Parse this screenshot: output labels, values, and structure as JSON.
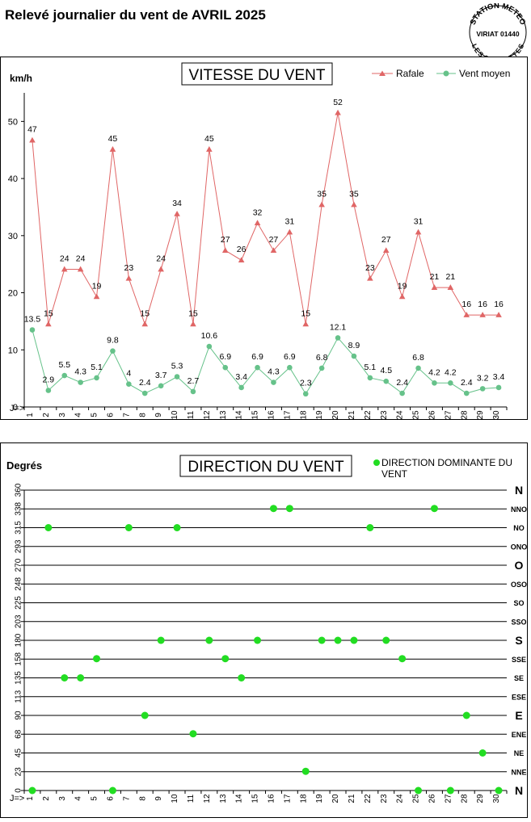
{
  "page": {
    "title": "Relevé journalier du vent de AVRIL 2025",
    "stamp": {
      "line1": "STATION METEO",
      "line2": "VIRIAT 01440",
      "line3": "LES FAUVETTES"
    }
  },
  "chart_data": [
    {
      "type": "line",
      "title": "VITESSE DU VENT",
      "ylabel": "km/h",
      "xlabel": "J=>",
      "ylim": [
        0,
        55
      ],
      "yticks": [
        0,
        10,
        20,
        30,
        40,
        50
      ],
      "grid": false,
      "legend": "top-right",
      "categories": [
        1,
        2,
        3,
        4,
        5,
        6,
        7,
        8,
        9,
        10,
        11,
        12,
        13,
        14,
        15,
        16,
        17,
        18,
        19,
        20,
        21,
        22,
        23,
        24,
        25,
        26,
        27,
        28,
        29,
        30
      ],
      "series": [
        {
          "name": "Rafale",
          "color": "#e06666",
          "marker": "triangle",
          "values": [
            46.7,
            14.5,
            24.1,
            24.1,
            19.3,
            45.1,
            22.5,
            14.5,
            24.1,
            33.8,
            14.5,
            45.1,
            27.4,
            25.7,
            32.2,
            27.4,
            30.6,
            14.5,
            35.4,
            51.5,
            35.4,
            22.5,
            27.4,
            19.3,
            30.6,
            20.9,
            20.9,
            16.1,
            16.1,
            16.1
          ],
          "labels": [
            "47",
            "15",
            "24",
            "24",
            "19",
            "45",
            "23",
            "15",
            "24",
            "34",
            "15",
            "45",
            "27",
            "26",
            "32",
            "27",
            "31",
            "15",
            "35",
            "52",
            "35",
            "23",
            "27",
            "19",
            "31",
            "21",
            "21",
            "16",
            "16",
            "16"
          ]
        },
        {
          "name": "Vent moyen",
          "color": "#66c28a",
          "marker": "circle",
          "values": [
            13.5,
            2.9,
            5.5,
            4.3,
            5.1,
            9.8,
            4,
            2.4,
            3.7,
            5.3,
            2.7,
            10.6,
            6.9,
            3.4,
            6.9,
            4.3,
            6.9,
            2.3,
            6.8,
            12.1,
            8.9,
            5.1,
            4.5,
            2.4,
            6.8,
            4.2,
            4.2,
            2.4,
            3.2,
            3.4
          ],
          "labels": [
            "13.5",
            "2.9",
            "5.5",
            "4.3",
            "5.1",
            "9.8",
            "4",
            "2.4",
            "3.7",
            "5.3",
            "2.7",
            "10.6",
            "6.9",
            "3.4",
            "6.9",
            "4.3",
            "6.9",
            "2.3",
            "6.8",
            "12.1",
            "8.9",
            "5.1",
            "4.5",
            "2.4",
            "6.8",
            "4.2",
            "4.2",
            "2.4",
            "3.2",
            "3.4"
          ]
        }
      ]
    },
    {
      "type": "scatter",
      "title": "DIRECTION DU VENT",
      "ylabel": "Degrés",
      "xlabel": "J=>",
      "ylim": [
        0,
        360
      ],
      "yticks": [
        0,
        23,
        45,
        68,
        90,
        113,
        135,
        158,
        180,
        203,
        225,
        248,
        270,
        293,
        315,
        338,
        360
      ],
      "compass_labels": [
        "N",
        "NNE",
        "NE",
        "ENE",
        "E",
        "ESE",
        "SE",
        "SSE",
        "S",
        "SSO",
        "SO",
        "OSO",
        "O",
        "ONO",
        "NO",
        "NNO",
        "N"
      ],
      "major_compass": [
        "N",
        "E",
        "S",
        "O"
      ],
      "grid": true,
      "legend": "top-right",
      "categories": [
        1,
        2,
        3,
        4,
        5,
        6,
        7,
        8,
        9,
        10,
        11,
        12,
        13,
        14,
        15,
        16,
        17,
        18,
        19,
        20,
        21,
        22,
        23,
        24,
        25,
        26,
        27,
        28,
        29,
        30
      ],
      "series": [
        {
          "name": "DIRECTION DOMINANTE DU VENT",
          "color": "#22dd22",
          "marker": "circle",
          "values": [
            0,
            315,
            135,
            135,
            158,
            0,
            315,
            90,
            180,
            315,
            68,
            180,
            158,
            135,
            180,
            338,
            338,
            23,
            180,
            180,
            180,
            315,
            180,
            158,
            0,
            338,
            0,
            90,
            45,
            0
          ]
        }
      ]
    }
  ]
}
